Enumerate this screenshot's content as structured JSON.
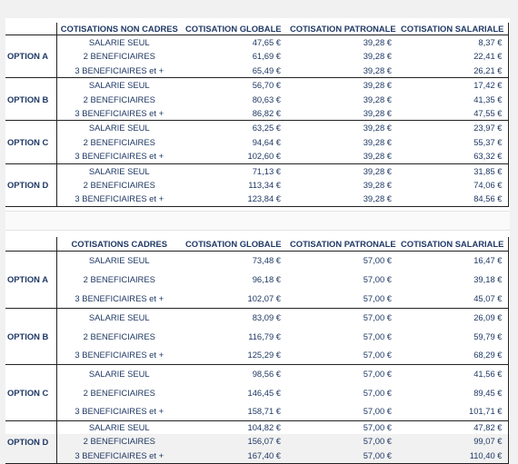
{
  "tables": [
    {
      "header": [
        "COTISATIONS NON CADRES",
        "COTISATION GLOBALE",
        "COTISATION PATRONALE",
        "COTISATION SALARIALE"
      ],
      "options": [
        {
          "name": "OPTION A",
          "rows": [
            {
              "label": "SALARIE SEUL",
              "globale": "47,65 €",
              "patronale": "39,28 €",
              "salariale": "8,37 €"
            },
            {
              "label": "2 BENEFICIAIRES",
              "globale": "61,69 €",
              "patronale": "39,28 €",
              "salariale": "22,41 €"
            },
            {
              "label": "3 BENEFICIAIRES et +",
              "globale": "65,49 €",
              "patronale": "39,28 €",
              "salariale": "26,21 €"
            }
          ]
        },
        {
          "name": "OPTION B",
          "rows": [
            {
              "label": "SALARIE SEUL",
              "globale": "56,70 €",
              "patronale": "39,28 €",
              "salariale": "17,42 €"
            },
            {
              "label": "2 BENEFICIAIRES",
              "globale": "80,63 €",
              "patronale": "39,28 €",
              "salariale": "41,35 €"
            },
            {
              "label": "3 BENEFICIAIRES et +",
              "globale": "86,82 €",
              "patronale": "39,28 €",
              "salariale": "47,55 €"
            }
          ]
        },
        {
          "name": "OPTION C",
          "rows": [
            {
              "label": "SALARIE SEUL",
              "globale": "63,25 €",
              "patronale": "39,28 €",
              "salariale": "23,97 €"
            },
            {
              "label": "2 BENEFICIAIRES",
              "globale": "94,64 €",
              "patronale": "39,28 €",
              "salariale": "55,37 €"
            },
            {
              "label": "3 BENEFICIAIRES et +",
              "globale": "102,60 €",
              "patronale": "39,28 €",
              "salariale": "63,32 €"
            }
          ]
        },
        {
          "name": "OPTION D",
          "rows": [
            {
              "label": "SALARIE SEUL",
              "globale": "71,13 €",
              "patronale": "39,28 €",
              "salariale": "31,85 €"
            },
            {
              "label": "2 BENEFICIAIRES",
              "globale": "113,34 €",
              "patronale": "39,28 €",
              "salariale": "74,06 €"
            },
            {
              "label": "3 BENEFICIAIRES et +",
              "globale": "123,84 €",
              "patronale": "39,28 €",
              "salariale": "84,56 €"
            }
          ]
        }
      ]
    },
    {
      "header": [
        "COTISATIONS CADRES",
        "COTISATION GLOBALE",
        "COTISATION PATRONALE",
        "COTISATION SALARIALE"
      ],
      "options": [
        {
          "name": "OPTION A",
          "rows": [
            {
              "label": "SALARIE SEUL",
              "globale": "73,48 €",
              "patronale": "57,00 €",
              "salariale": "16,47 €"
            },
            {
              "label": "2 BENEFICIAIRES",
              "globale": "96,18 €",
              "patronale": "57,00 €",
              "salariale": "39,18 €"
            },
            {
              "label": "3 BENEFICIAIRES et +",
              "globale": "102,07 €",
              "patronale": "57,00 €",
              "salariale": "45,07 €"
            }
          ]
        },
        {
          "name": "OPTION B",
          "rows": [
            {
              "label": "SALARIE SEUL",
              "globale": "83,09 €",
              "patronale": "57,00 €",
              "salariale": "26,09 €"
            },
            {
              "label": "2 BENEFICIAIRES",
              "globale": "116,79 €",
              "patronale": "57,00 €",
              "salariale": "59,79 €"
            },
            {
              "label": "3 BENEFICIAIRES et +",
              "globale": "125,29 €",
              "patronale": "57,00 €",
              "salariale": "68,29 €"
            }
          ]
        },
        {
          "name": "OPTION C",
          "rows": [
            {
              "label": "SALARIE SEUL",
              "globale": "98,56 €",
              "patronale": "57,00 €",
              "salariale": "41,56 €"
            },
            {
              "label": "2 BENEFICIAIRES",
              "globale": "146,45 €",
              "patronale": "57,00 €",
              "salariale": "89,45 €"
            },
            {
              "label": "3 BENEFICIAIRES et +",
              "globale": "158,71 €",
              "patronale": "57,00 €",
              "salariale": "101,71 €"
            }
          ]
        },
        {
          "name": "OPTION D",
          "rows": [
            {
              "label": "SALARIE SEUL",
              "globale": "104,82 €",
              "patronale": "57,00 €",
              "salariale": "47,82 €"
            },
            {
              "label": "2 BENEFICIAIRES",
              "globale": "156,07 €",
              "patronale": "57,00 €",
              "salariale": "99,07 €"
            },
            {
              "label": "3 BENEFICIAIRES et +",
              "globale": "167,40 €",
              "patronale": "57,00 €",
              "salariale": "110,40 €"
            }
          ]
        }
      ]
    }
  ]
}
